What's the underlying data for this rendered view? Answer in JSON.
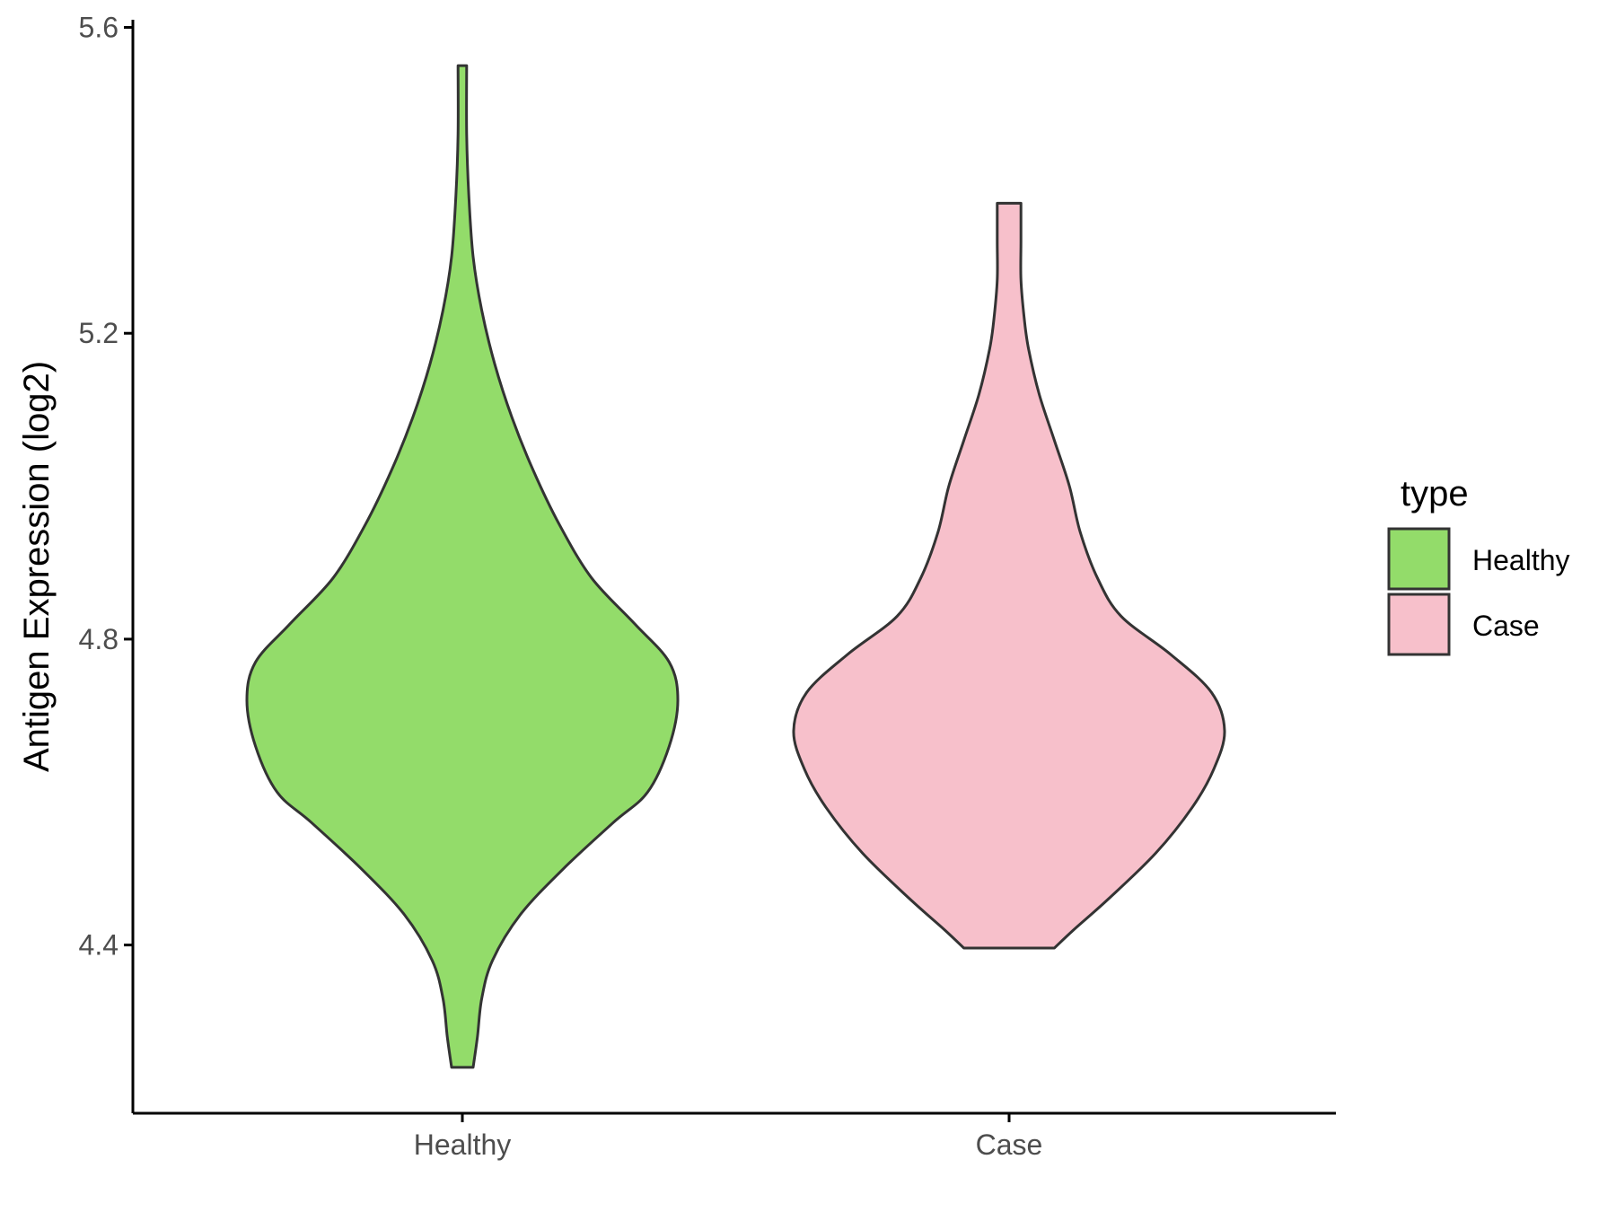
{
  "chart_data": {
    "type": "violin",
    "title": "",
    "xlabel": "",
    "ylabel": "Antigen Expression (log2)",
    "ylim": [
      4.18,
      5.61
    ],
    "yticks": [
      "4.4",
      "4.8",
      "5.2",
      "5.6"
    ],
    "grid": false,
    "legend": {
      "title": "type",
      "placement": "right",
      "entries": [
        "Healthy",
        "Case"
      ]
    },
    "categories": [
      "Healthy",
      "Case"
    ],
    "series": [
      {
        "name": "Healthy",
        "color": "#93DC6A",
        "min": 4.24,
        "max": 5.55,
        "density_profile": [
          [
            4.24,
            0.05
          ],
          [
            4.28,
            0.07
          ],
          [
            4.33,
            0.09
          ],
          [
            4.38,
            0.14
          ],
          [
            4.44,
            0.27
          ],
          [
            4.5,
            0.47
          ],
          [
            4.56,
            0.7
          ],
          [
            4.6,
            0.86
          ],
          [
            4.66,
            0.96
          ],
          [
            4.72,
            1.0
          ],
          [
            4.77,
            0.96
          ],
          [
            4.82,
            0.8
          ],
          [
            4.88,
            0.6
          ],
          [
            4.95,
            0.45
          ],
          [
            5.02,
            0.33
          ],
          [
            5.09,
            0.23
          ],
          [
            5.16,
            0.15
          ],
          [
            5.23,
            0.09
          ],
          [
            5.3,
            0.05
          ],
          [
            5.38,
            0.03
          ],
          [
            5.46,
            0.02
          ],
          [
            5.55,
            0.02
          ]
        ]
      },
      {
        "name": "Case",
        "color": "#F7C0CB",
        "min": 4.396,
        "max": 5.37,
        "density_profile": [
          [
            4.396,
            0.21
          ],
          [
            4.42,
            0.3
          ],
          [
            4.46,
            0.46
          ],
          [
            4.52,
            0.68
          ],
          [
            4.58,
            0.85
          ],
          [
            4.63,
            0.95
          ],
          [
            4.68,
            1.0
          ],
          [
            4.73,
            0.94
          ],
          [
            4.78,
            0.75
          ],
          [
            4.83,
            0.52
          ],
          [
            4.88,
            0.41
          ],
          [
            4.94,
            0.33
          ],
          [
            5.0,
            0.28
          ],
          [
            5.06,
            0.21
          ],
          [
            5.12,
            0.14
          ],
          [
            5.18,
            0.09
          ],
          [
            5.22,
            0.07
          ],
          [
            5.27,
            0.055
          ],
          [
            5.32,
            0.055
          ],
          [
            5.37,
            0.055
          ]
        ]
      }
    ]
  }
}
